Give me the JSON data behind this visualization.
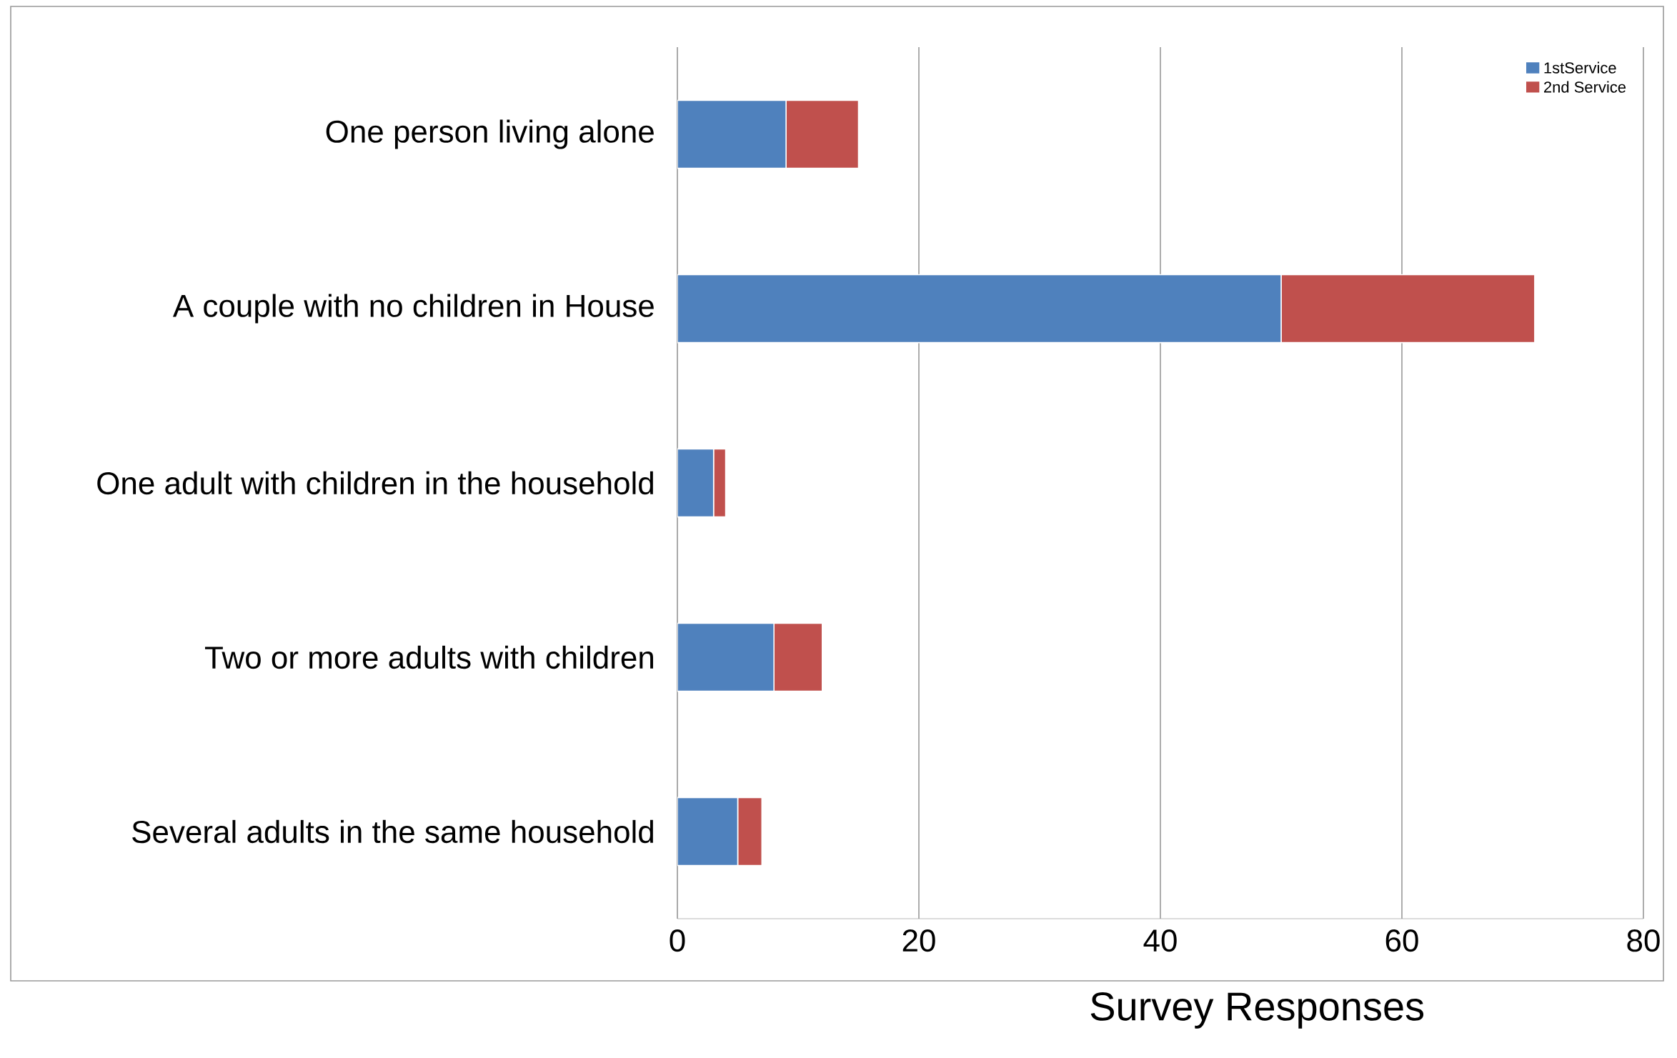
{
  "chart_data": {
    "type": "bar",
    "orientation": "horizontal",
    "stacked": true,
    "xlabel": "Survey Responses",
    "categories": [
      "One person living alone",
      "A couple with no children in House",
      "One adult with children in the household",
      "Two or more adults with children",
      "Several adults in the same household"
    ],
    "series": [
      {
        "name": "1stService",
        "color": "#4f81bd",
        "values": [
          9,
          50,
          3,
          8,
          5
        ]
      },
      {
        "name": "2nd Service",
        "color": "#c0504d",
        "values": [
          6,
          21,
          1,
          4,
          2
        ]
      }
    ],
    "xlim": [
      0,
      80
    ],
    "xticks": [
      0,
      20,
      40,
      60,
      80
    ],
    "grid": "x",
    "legend": "top right"
  }
}
